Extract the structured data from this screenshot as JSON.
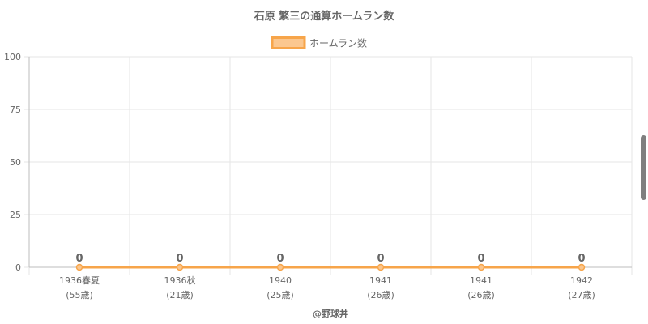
{
  "chart_data": {
    "type": "line",
    "title": "石原 繁三の通算ホームラン数",
    "legend": {
      "position": "top",
      "label": "ホームラン数"
    },
    "categories": [
      {
        "year": "1936春夏",
        "age": "(55歳)"
      },
      {
        "year": "1936秋",
        "age": "(21歳)"
      },
      {
        "year": "1940",
        "age": "(25歳)"
      },
      {
        "year": "1941",
        "age": "(26歳)"
      },
      {
        "year": "1941",
        "age": "(26歳)"
      },
      {
        "year": "1942",
        "age": "(27歳)"
      }
    ],
    "series": [
      {
        "name": "ホームラン数",
        "values": [
          0,
          0,
          0,
          0,
          0,
          0
        ]
      }
    ],
    "ylim": [
      0,
      100
    ],
    "yticks": [
      0,
      25,
      50,
      75,
      100
    ],
    "grid": true,
    "colors": {
      "line": "#f7a54a",
      "fill": "#fbc78f",
      "grid": "#e6e6e6",
      "axis": "#bdbdbd",
      "text": "#666666"
    }
  },
  "footer": {
    "credit": "@野球丼"
  }
}
